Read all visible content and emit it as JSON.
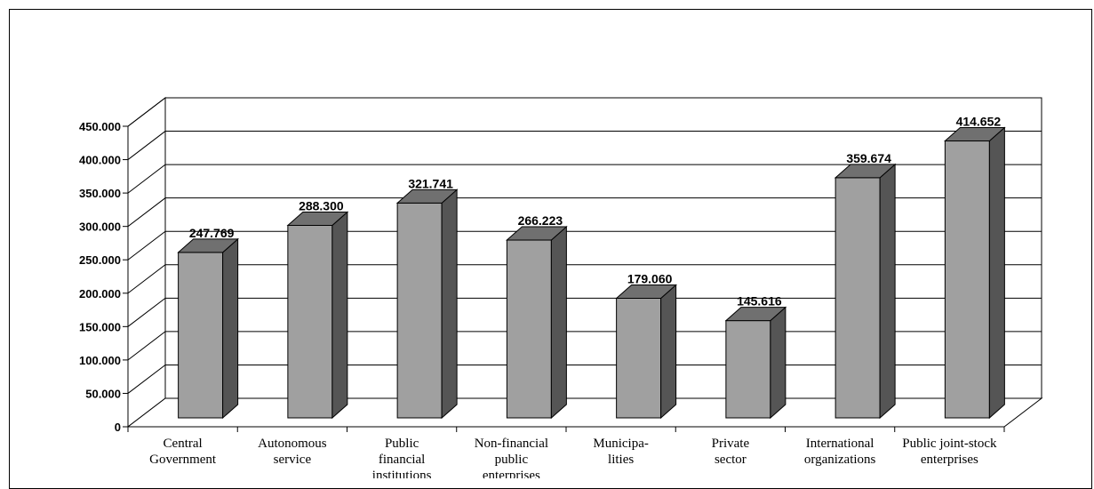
{
  "chart_data": {
    "type": "bar",
    "style": "3d-column",
    "categories": [
      "Central Government",
      "Autonomous service",
      "Public financial institutions",
      "Non-financial public enterprises",
      "Municipa- lities",
      "Private sector",
      "International organizations",
      "Public joint-stock enterprises"
    ],
    "category_lines": [
      [
        "Central",
        "Government"
      ],
      [
        "Autonomous",
        "service"
      ],
      [
        "Public",
        "financial",
        "institutions"
      ],
      [
        "Non-financial",
        "public",
        "enterprises"
      ],
      [
        "Municipa-",
        "lities"
      ],
      [
        "Private",
        "sector"
      ],
      [
        "International",
        "organizations"
      ],
      [
        "Public joint-stock",
        "enterprises"
      ]
    ],
    "values": [
      247769,
      288300,
      321741,
      266223,
      179060,
      145616,
      359674,
      414652
    ],
    "value_labels": [
      "247.769",
      "288.300",
      "321.741",
      "266.223",
      "179.060",
      "145.616",
      "359.674",
      "414.652"
    ],
    "ylim": [
      0,
      450000
    ],
    "yticks": [
      0,
      50000,
      100000,
      150000,
      200000,
      250000,
      300000,
      350000,
      400000,
      450000
    ],
    "ytick_labels": [
      "0",
      "50.000",
      "100.000",
      "150.000",
      "200.000",
      "250.000",
      "300.000",
      "350.000",
      "400.000",
      "450.000"
    ],
    "title": "",
    "xlabel": "",
    "ylabel": "",
    "grid": true,
    "legend": false,
    "colors": {
      "bar_front": "#a0a0a0",
      "bar_side": "#555555",
      "bar_top": "#707070",
      "wall": "#ffffff",
      "grid": "#000000"
    }
  }
}
